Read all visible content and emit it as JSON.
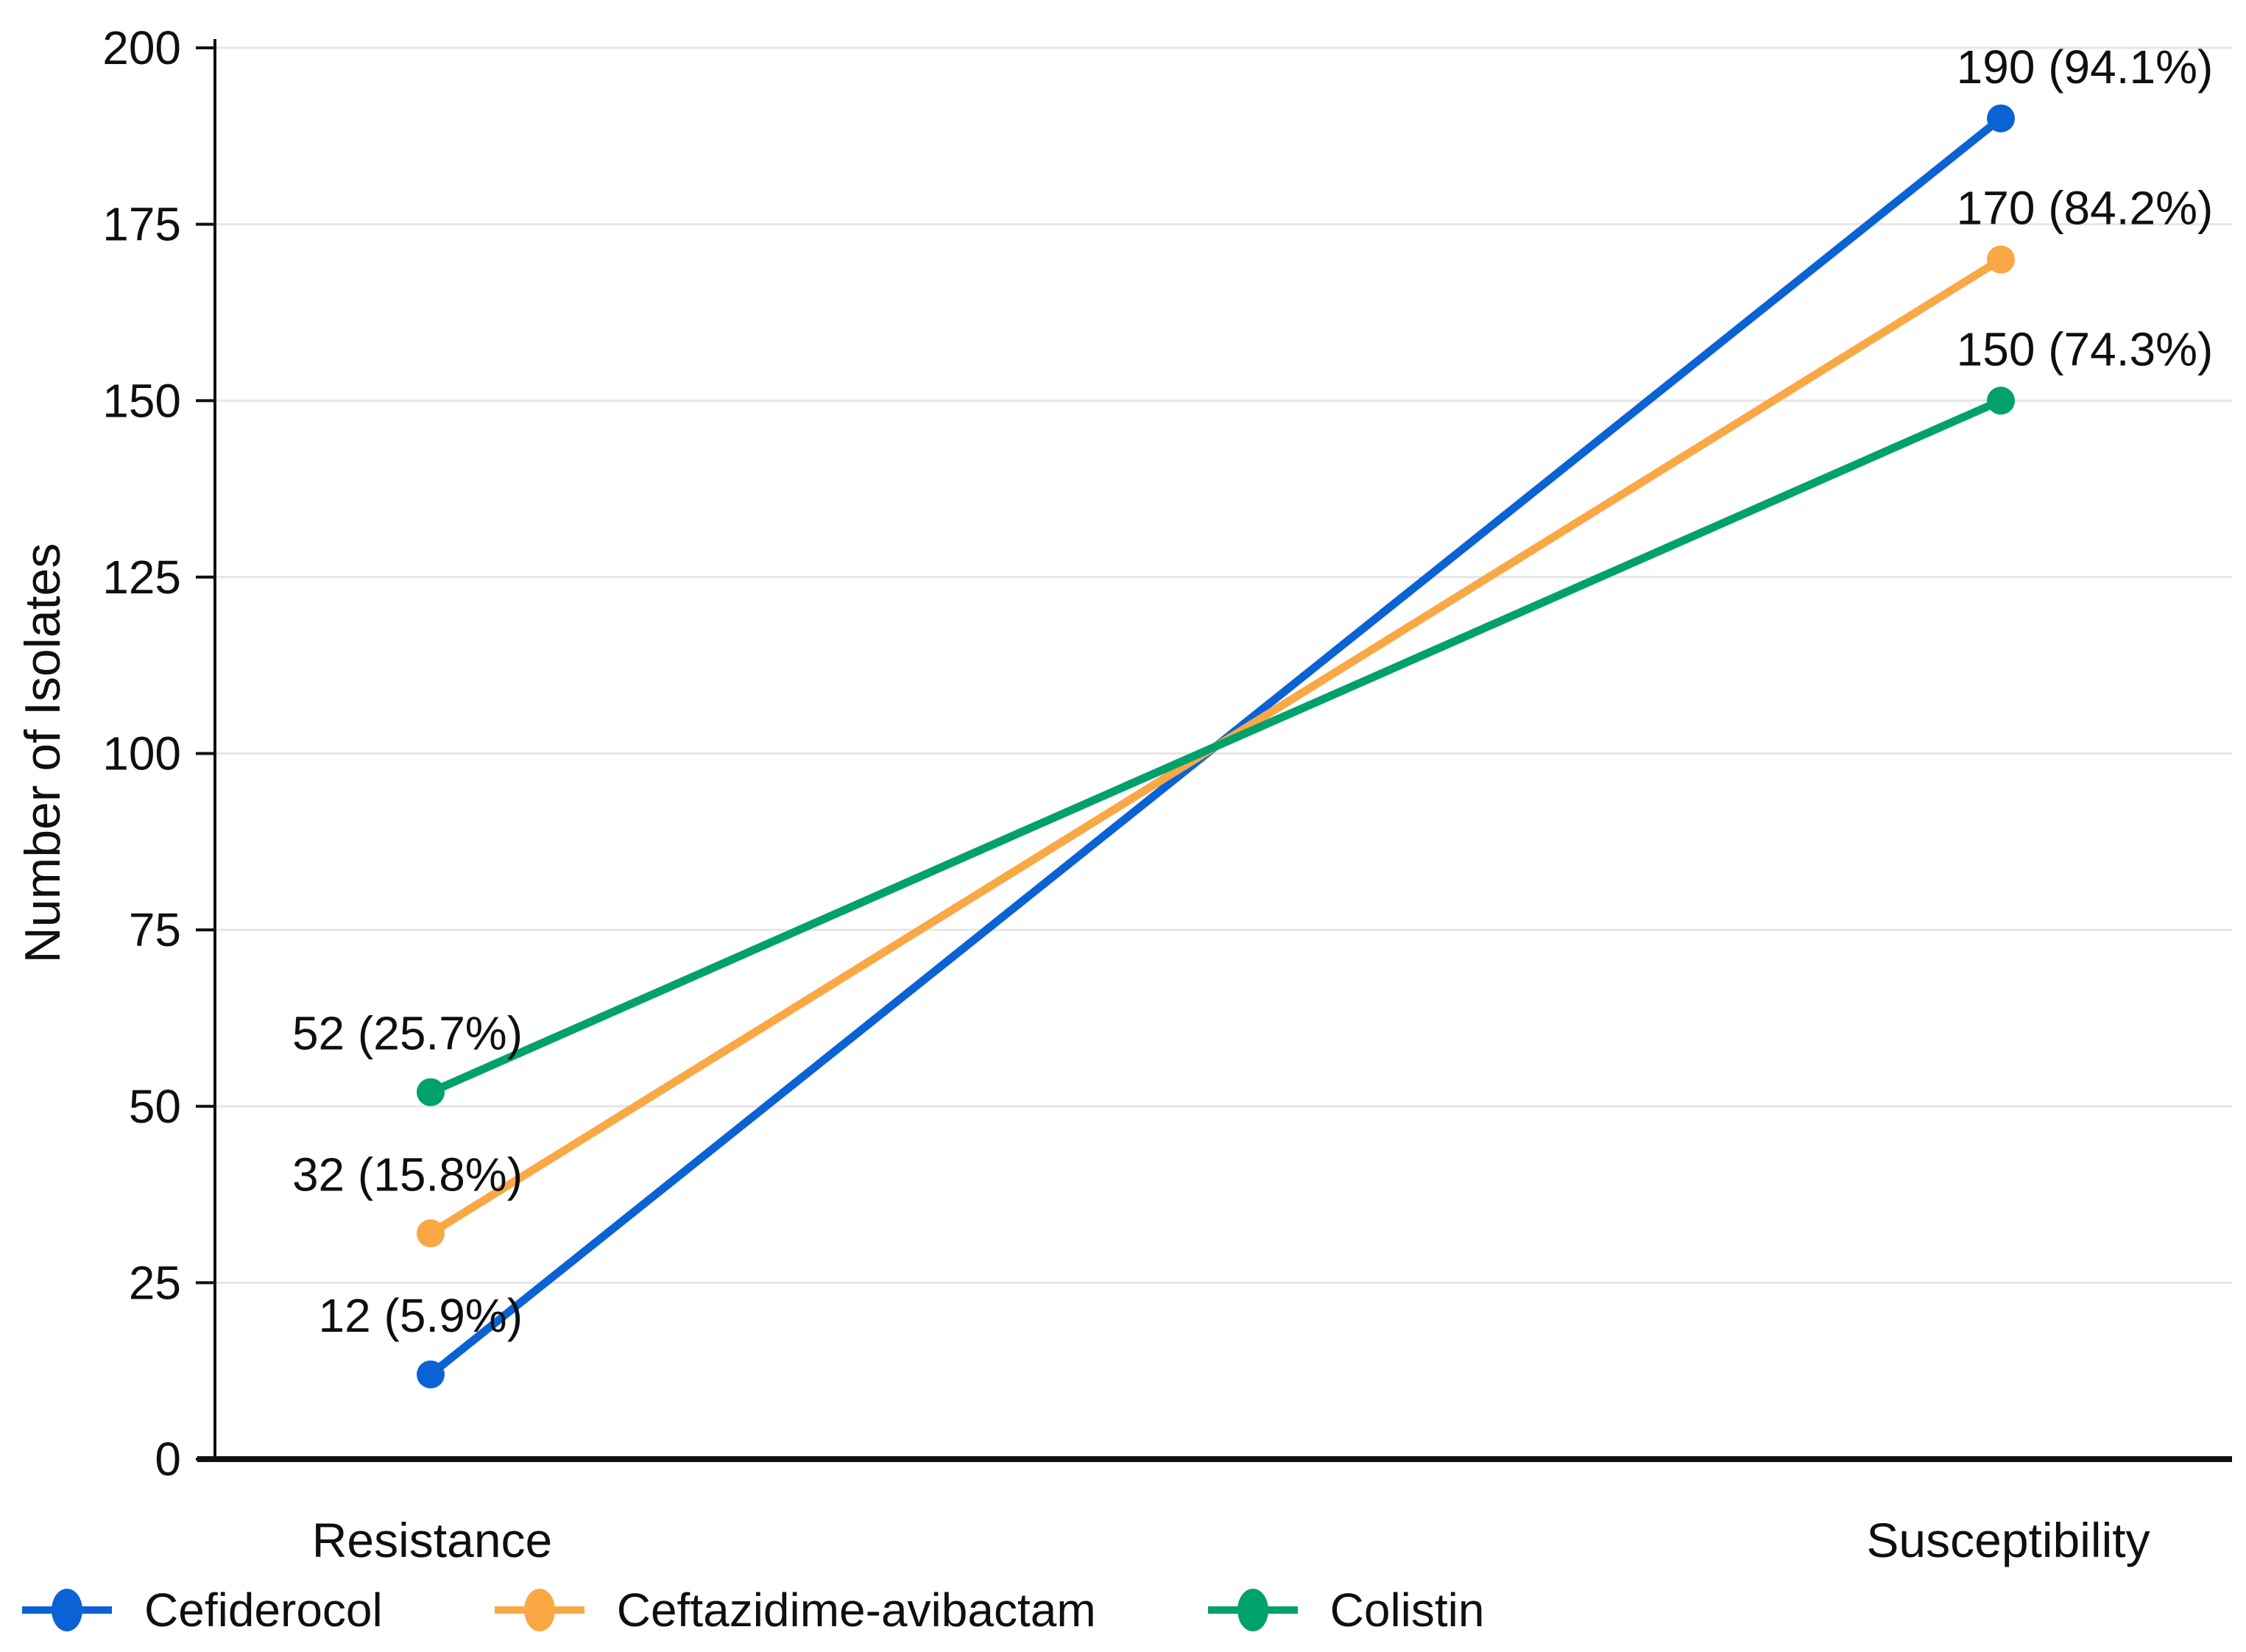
{
  "figure": {
    "background": "#FFFFFF",
    "text_color": "#0F0F0F",
    "grid_color": "#E6E6E6",
    "axis_color": "#111111"
  },
  "chart_data": {
    "type": "line",
    "variant": "slope",
    "title": "",
    "xlabel": "",
    "ylabel": "Number of Isolates",
    "categories": [
      "Resistance",
      "Susceptibility"
    ],
    "series": [
      {
        "name": "Cefiderocol",
        "color": "#0B62D4",
        "values": [
          12,
          190
        ],
        "point_labels": [
          "12 (5.9%)",
          "190 (94.1%)"
        ]
      },
      {
        "name": "Ceftazidime-avibactam",
        "color": "#F9A845",
        "values": [
          32,
          170
        ],
        "point_labels": [
          "32 (15.8%)",
          "170 (84.2%)"
        ]
      },
      {
        "name": "Colistin",
        "color": "#00A16B",
        "values": [
          52,
          150
        ],
        "point_labels": [
          "52 (25.7%)",
          "150 (74.3%)"
        ]
      }
    ],
    "ylim": [
      0,
      200
    ],
    "yticks": [
      0,
      25,
      50,
      75,
      100,
      125,
      150,
      175,
      200
    ],
    "grid": true,
    "legend_position": "bottom-left"
  }
}
